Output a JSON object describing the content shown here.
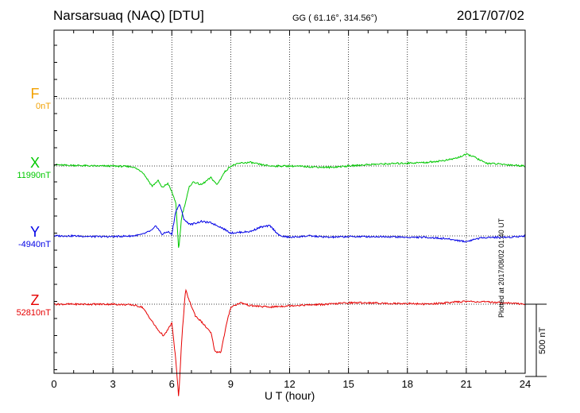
{
  "header": {
    "station": "Narsarsuaq (NAQ)  [DTU]",
    "coords": "GG ( 61.16°, 314.56°)",
    "date": "2017/07/02"
  },
  "footer": {
    "plotted": "Plotted at 2017/08/02 01:40 UT",
    "scale_label": "500 nT"
  },
  "components": [
    {
      "letter": "F",
      "baseline": "0nT",
      "color": "#f2a100"
    },
    {
      "letter": "X",
      "baseline": "11990nT",
      "color": "#00c800"
    },
    {
      "letter": "Y",
      "baseline": "-4940nT",
      "color": "#0000e6"
    },
    {
      "letter": "Z",
      "baseline": "52810nT",
      "color": "#e60000"
    }
  ],
  "chart_data": {
    "type": "line",
    "title": "Narsarsuaq (NAQ)  [DTU]",
    "xlabel": "U T (hour)",
    "ylabel": "",
    "xlim": [
      0,
      24
    ],
    "xticks": [
      "0",
      "3",
      "6",
      "9",
      "12",
      "15",
      "18",
      "21",
      "24"
    ],
    "y_unit": "nT",
    "scale_bar_nT": 500,
    "grid": true,
    "series": [
      {
        "name": "F",
        "baseline_nT": 0,
        "color": "#f2a100",
        "x": [],
        "y": []
      },
      {
        "name": "X",
        "baseline_nT": 11990,
        "color": "#00c800",
        "x": [
          0,
          0.5,
          1,
          2,
          3,
          4,
          4.5,
          5,
          5.3,
          5.5,
          5.8,
          6,
          6.2,
          6.35,
          6.5,
          6.7,
          6.9,
          7.1,
          7.5,
          8,
          8.3,
          8.7,
          9,
          9.5,
          10,
          10.5,
          11,
          12,
          13,
          14,
          15,
          16,
          17,
          18,
          19,
          20,
          20.5,
          21,
          21.3,
          21.7,
          22,
          23,
          24
        ],
        "y": [
          10,
          5,
          5,
          0,
          0,
          -5,
          -40,
          -140,
          -100,
          -150,
          -120,
          -180,
          -250,
          -580,
          -350,
          -250,
          -140,
          -110,
          -130,
          -80,
          -130,
          -40,
          0,
          20,
          25,
          10,
          0,
          0,
          -5,
          -10,
          0,
          10,
          15,
          20,
          25,
          40,
          55,
          80,
          70,
          40,
          20,
          10,
          0
        ]
      },
      {
        "name": "Y",
        "baseline_nT": -4940,
        "color": "#0000e6",
        "x": [
          0,
          1,
          2,
          3,
          4,
          4.5,
          5,
          5.2,
          5.5,
          5.8,
          6,
          6.2,
          6.4,
          6.6,
          6.8,
          7,
          7.5,
          8,
          8.5,
          9,
          10,
          10.5,
          11,
          11.5,
          12,
          13,
          14,
          15,
          16,
          17,
          18,
          19,
          20,
          21,
          21.5,
          22,
          23,
          24
        ],
        "y": [
          0,
          0,
          -5,
          -5,
          0,
          10,
          40,
          70,
          10,
          30,
          10,
          170,
          220,
          120,
          90,
          80,
          100,
          90,
          60,
          20,
          30,
          60,
          70,
          0,
          -10,
          0,
          -10,
          -5,
          -5,
          -5,
          -10,
          -10,
          -20,
          -40,
          -20,
          -10,
          -10,
          0
        ]
      },
      {
        "name": "Z",
        "baseline_nT": 52810,
        "color": "#e60000",
        "x": [
          0,
          1,
          2,
          3,
          4,
          4.5,
          5,
          5.3,
          5.6,
          6,
          6.2,
          6.35,
          6.5,
          6.7,
          6.9,
          7.2,
          7.5,
          8,
          8.2,
          8.5,
          8.8,
          9,
          9.5,
          10,
          11,
          12,
          13,
          14,
          15,
          16,
          17,
          18,
          19,
          20,
          21,
          22,
          23,
          24
        ],
        "y": [
          0,
          0,
          0,
          0,
          -5,
          -20,
          -120,
          -180,
          -220,
          -130,
          -380,
          -650,
          -250,
          100,
          20,
          -80,
          -120,
          -200,
          -330,
          -330,
          -130,
          -20,
          10,
          -10,
          -20,
          -10,
          -5,
          0,
          10,
          10,
          5,
          5,
          0,
          10,
          20,
          15,
          10,
          0
        ]
      }
    ]
  }
}
